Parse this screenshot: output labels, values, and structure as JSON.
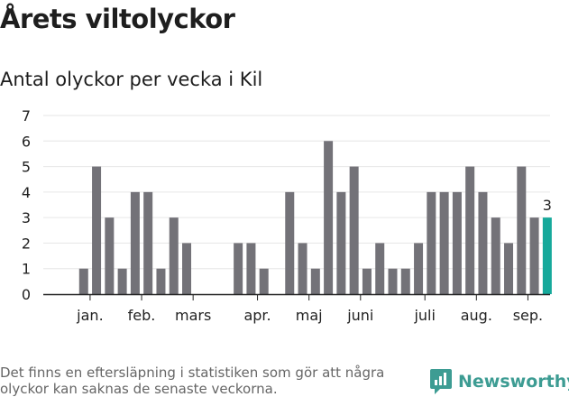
{
  "title": "Årets viltolyckor",
  "subtitle": "Antal olyckor per vecka i Kil",
  "footnote": "Det finns en eftersläpning i statistiken som gör att några olyckor kan saknas de senaste veckorna.",
  "brand": {
    "name": "Newsworthy",
    "icon": "newsworthy-logo-icon"
  },
  "colors": {
    "bar": "#737278",
    "highlight": "#16a99b",
    "grid": "#e6e6e6",
    "axis": "#222222",
    "brand": "#3d9c93"
  },
  "chart_data": {
    "type": "bar",
    "title": "Antal olyckor per vecka i Kil",
    "xlabel": "",
    "ylabel": "",
    "ylim": [
      0,
      7
    ],
    "yticks": [
      0,
      1,
      2,
      3,
      4,
      5,
      6,
      7
    ],
    "grid": true,
    "week_labels": [
      "jan.",
      "feb.",
      "mars",
      "apr.",
      "maj",
      "juni",
      "juli",
      "aug.",
      "sep."
    ],
    "month_labels": [
      {
        "label": "jan.",
        "week": 2.5
      },
      {
        "label": "feb.",
        "week": 6.5
      },
      {
        "label": "mars",
        "week": 10.5
      },
      {
        "label": "apr.",
        "week": 15.5
      },
      {
        "label": "maj",
        "week": 19.5
      },
      {
        "label": "juni",
        "week": 23.5
      },
      {
        "label": "juli",
        "week": 28.5
      },
      {
        "label": "aug.",
        "week": 32.5
      },
      {
        "label": "sep.",
        "week": 36.5
      }
    ],
    "weeks": [
      1,
      2,
      3,
      4,
      5,
      6,
      7,
      8,
      9,
      10,
      11,
      12,
      13,
      14,
      15,
      16,
      17,
      18,
      19,
      20,
      21,
      22,
      23,
      24,
      25,
      26,
      27,
      28,
      29,
      30,
      31,
      32,
      33,
      34,
      35,
      36,
      37,
      38
    ],
    "values": [
      0,
      1,
      5,
      3,
      1,
      4,
      4,
      1,
      3,
      2,
      0,
      0,
      0,
      2,
      2,
      1,
      0,
      4,
      2,
      1,
      6,
      4,
      5,
      1,
      2,
      1,
      1,
      2,
      4,
      4,
      4,
      5,
      4,
      3,
      2,
      5,
      3,
      3
    ],
    "highlight_index": 37,
    "highlight_label": "3"
  }
}
